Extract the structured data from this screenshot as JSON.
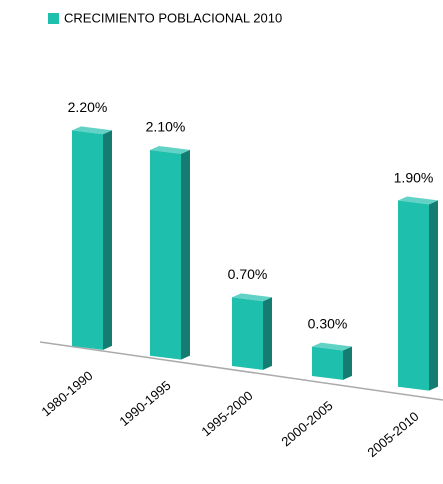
{
  "chart_data": {
    "type": "bar3d",
    "categories": [
      "1980-1990",
      "1990-1995",
      "1995-2000",
      "2000-2005",
      "2005-2010"
    ],
    "series": [
      {
        "name": "CRECIMIENTO POBLACIONAL 2010",
        "color": "#1fbfad",
        "values": [
          2.2,
          2.1,
          0.7,
          0.3,
          1.9
        ],
        "value_labels": [
          "2.20%",
          "2.10%",
          "0.70%",
          "0.30%",
          "1.90%"
        ]
      }
    ],
    "legend": "top"
  }
}
